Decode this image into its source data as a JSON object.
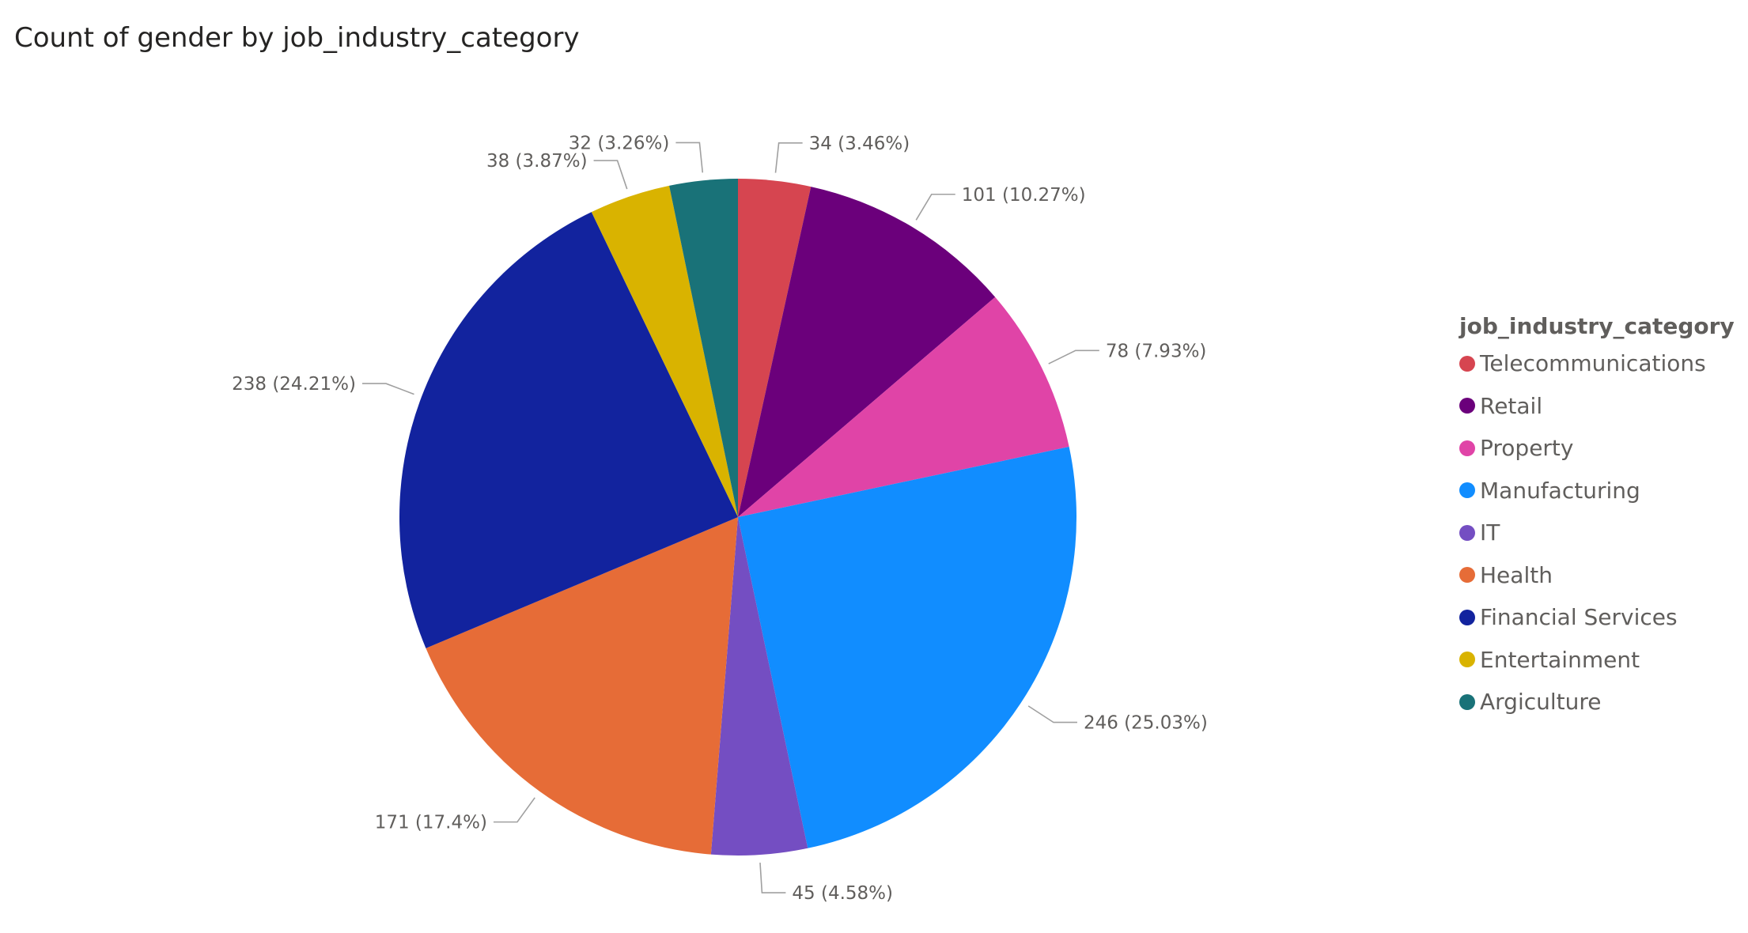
{
  "chart_data": {
    "type": "pie",
    "title": "Count of gender by job_industry_category",
    "legend_title": "job_industry_category",
    "legend_position": "right",
    "start_angle_deg": 0,
    "direction": "clockwise",
    "slices": [
      {
        "name": "Telecommunications",
        "value": 34,
        "percent_label": "34 (3.46%)",
        "color": "#d64550"
      },
      {
        "name": "Retail",
        "value": 101,
        "percent_label": "101 (10.27%)",
        "color": "#6b007b"
      },
      {
        "name": "Property",
        "value": 78,
        "percent_label": "78 (7.93%)",
        "color": "#e044a7"
      },
      {
        "name": "Manufacturing",
        "value": 246,
        "percent_label": "246 (25.03%)",
        "color": "#118dff"
      },
      {
        "name": "IT",
        "value": 45,
        "percent_label": "45 (4.58%)",
        "color": "#744ec2"
      },
      {
        "name": "Health",
        "value": 171,
        "percent_label": "171 (17.4%)",
        "color": "#e66c37"
      },
      {
        "name": "Financial Services",
        "value": 238,
        "percent_label": "238 (24.21%)",
        "color": "#12239e"
      },
      {
        "name": "Entertainment",
        "value": 38,
        "percent_label": "38 (3.87%)",
        "color": "#d9b300"
      },
      {
        "name": "Argiculture",
        "value": 32,
        "percent_label": "32 (3.26%)",
        "color": "#197278"
      }
    ]
  }
}
